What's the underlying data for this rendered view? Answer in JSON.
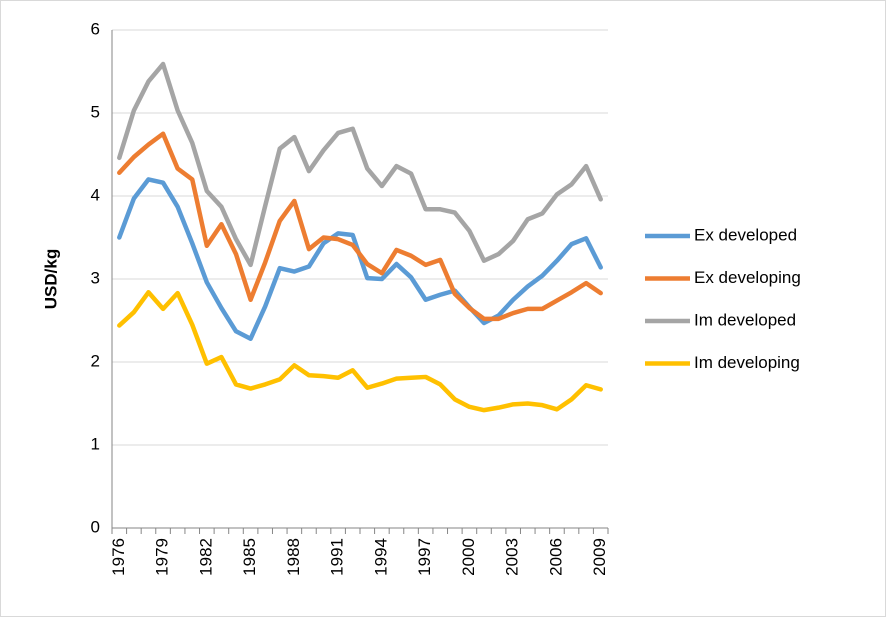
{
  "chart_data": {
    "type": "line",
    "ylabel": "USD/kg",
    "categories": [
      "1976",
      null,
      null,
      "1979",
      null,
      null,
      "1982",
      null,
      null,
      "1985",
      null,
      null,
      "1988",
      null,
      null,
      "1991",
      null,
      null,
      "1994",
      null,
      null,
      "1997",
      null,
      null,
      "2000",
      null,
      null,
      "2003",
      null,
      null,
      "2006",
      null,
      null,
      "2009"
    ],
    "series": [
      {
        "name": "Ex developed",
        "color": "#5b9bd5",
        "values": [
          3.5,
          3.97,
          4.2,
          4.16,
          3.87,
          3.43,
          2.96,
          2.65,
          2.37,
          2.28,
          2.67,
          3.13,
          3.09,
          3.15,
          3.43,
          3.55,
          3.53,
          3.01,
          3.0,
          3.18,
          3.02,
          2.75,
          2.81,
          2.86,
          2.66,
          2.47,
          2.56,
          2.75,
          2.91,
          3.04,
          3.22,
          3.42,
          3.49,
          3.14
        ]
      },
      {
        "name": "Ex developing",
        "color": "#ed7d31",
        "values": [
          4.28,
          4.47,
          4.62,
          4.75,
          4.33,
          4.2,
          3.4,
          3.66,
          3.3,
          2.75,
          3.2,
          3.7,
          3.94,
          3.36,
          3.5,
          3.48,
          3.41,
          3.18,
          3.07,
          3.35,
          3.28,
          3.17,
          3.23,
          2.82,
          2.65,
          2.52,
          2.52,
          2.59,
          2.64,
          2.64,
          2.74,
          2.84,
          2.95,
          2.83
        ]
      },
      {
        "name": "Im developed",
        "color": "#a5a5a5",
        "values": [
          4.46,
          5.03,
          5.38,
          5.59,
          5.03,
          4.64,
          4.06,
          3.87,
          3.48,
          3.17,
          3.88,
          4.57,
          4.71,
          4.3,
          4.55,
          4.76,
          4.81,
          4.33,
          4.12,
          4.36,
          4.27,
          3.84,
          3.84,
          3.8,
          3.58,
          3.22,
          3.3,
          3.46,
          3.72,
          3.79,
          4.02,
          4.14,
          4.36,
          3.96
        ]
      },
      {
        "name": "Im developing",
        "color": "#ffc000",
        "values": [
          2.44,
          2.6,
          2.84,
          2.64,
          2.83,
          2.45,
          1.98,
          2.06,
          1.73,
          1.68,
          1.73,
          1.79,
          1.96,
          1.84,
          1.83,
          1.81,
          1.9,
          1.69,
          1.74,
          1.8,
          1.81,
          1.82,
          1.73,
          1.55,
          1.46,
          1.42,
          1.45,
          1.49,
          1.5,
          1.48,
          1.43,
          1.55,
          1.72,
          1.67
        ]
      }
    ],
    "ylim": [
      0,
      6
    ],
    "yticks": [
      0,
      1,
      2,
      3,
      4,
      5,
      6
    ],
    "grid": true,
    "legend": "right"
  }
}
